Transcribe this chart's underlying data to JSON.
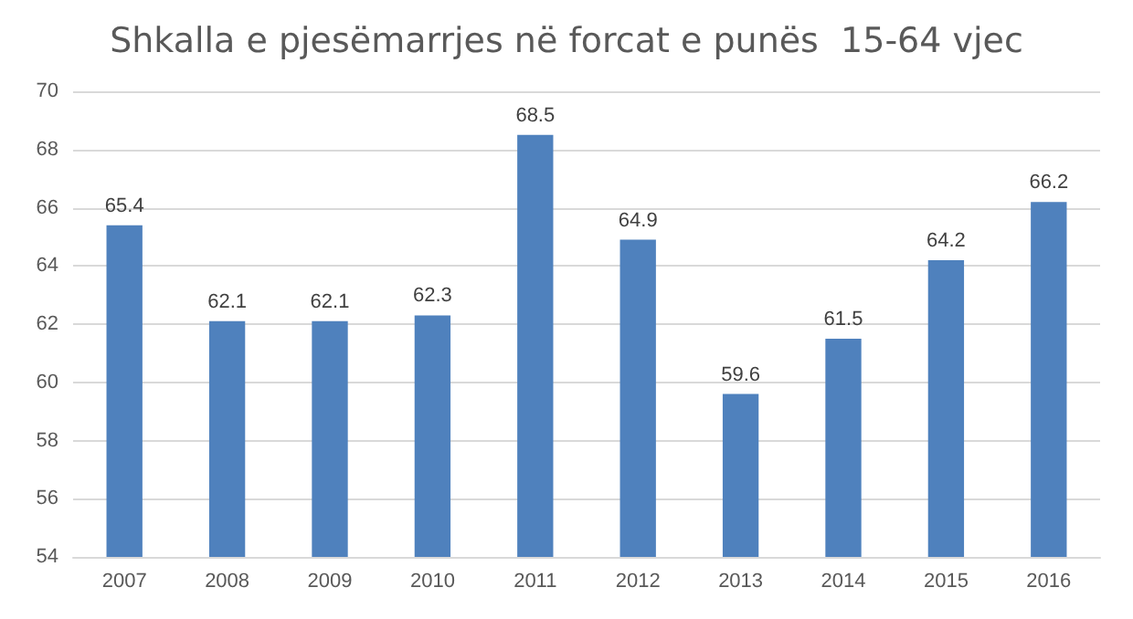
{
  "chart_data": {
    "type": "bar",
    "title": "Shkalla e pjesëmarrjes në forcat e punës  15-64 vjec",
    "categories": [
      "2007",
      "2008",
      "2009",
      "2010",
      "2011",
      "2012",
      "2013",
      "2014",
      "2015",
      "2016"
    ],
    "values": [
      65.4,
      62.1,
      62.1,
      62.3,
      68.5,
      64.9,
      59.6,
      61.5,
      64.2,
      66.2
    ],
    "color": "#4f81bd",
    "ylim": [
      54,
      70
    ],
    "yticks": [
      54,
      56,
      58,
      60,
      62,
      64,
      66,
      68,
      70
    ],
    "grid": "y",
    "data_labels": true
  }
}
